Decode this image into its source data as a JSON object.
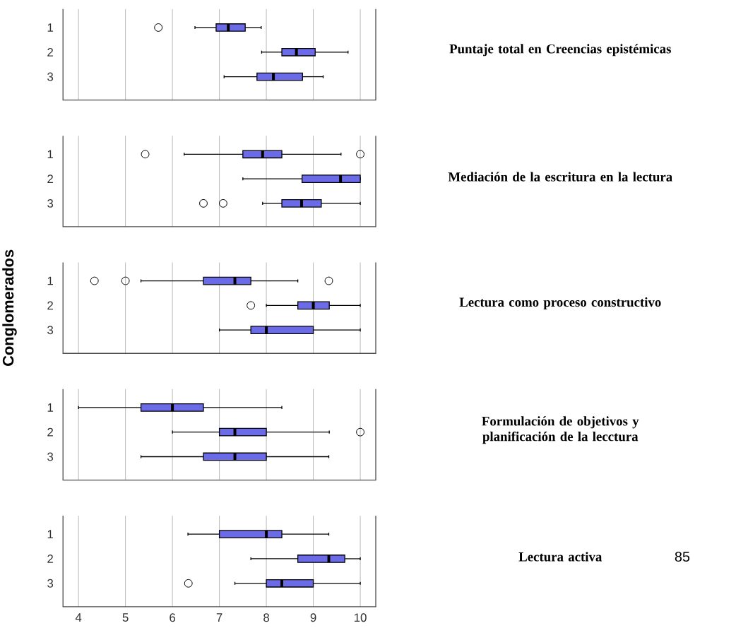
{
  "chart_data": [
    {
      "type": "box",
      "orientation": "horizontal",
      "annotations": [
        "Puntaje total en Creencias epistémicas"
      ],
      "categories": [
        "1",
        "2",
        "3"
      ],
      "color": "#6b6be8",
      "grid": "x",
      "tick_labels": "y",
      "xlim": [
        3.67,
        10.33
      ],
      "xticks": [
        4,
        5,
        6,
        7,
        8,
        9,
        10
      ],
      "boxes": [
        {
          "low": 6.48,
          "q1": 6.93,
          "median": 7.19,
          "q3": 7.55,
          "high": 7.89,
          "outliers": [
            5.7
          ]
        },
        {
          "low": 7.9,
          "q1": 8.33,
          "median": 8.64,
          "q3": 9.04,
          "high": 9.74
        },
        {
          "low": 7.1,
          "q1": 7.8,
          "median": 8.15,
          "q3": 8.77,
          "high": 9.21
        }
      ]
    },
    {
      "type": "box",
      "orientation": "horizontal",
      "annotations": [
        "Mediación de la escritura en la lectura"
      ],
      "categories": [
        "1",
        "2",
        "3"
      ],
      "color": "#6b6be8",
      "grid": "x",
      "tick_labels": "y",
      "xlim": [
        3.67,
        10.33
      ],
      "xticks": [
        4,
        5,
        6,
        7,
        8,
        9,
        10
      ],
      "boxes": [
        {
          "low": 6.25,
          "q1": 7.5,
          "median": 7.92,
          "q3": 8.33,
          "high": 9.59,
          "outliers": [
            5.42,
            10
          ]
        },
        {
          "low": 7.5,
          "q1": 8.76,
          "median": 9.58,
          "q3": 10,
          "high": 10
        },
        {
          "low": 7.92,
          "q1": 8.33,
          "median": 8.75,
          "q3": 9.17,
          "high": 10,
          "outliers": [
            6.66,
            7.08
          ]
        }
      ]
    },
    {
      "type": "box",
      "orientation": "horizontal",
      "annotations": [
        "Lectura como proceso constructivo"
      ],
      "ylabel": "Conglomerados",
      "categories": [
        "1",
        "2",
        "3"
      ],
      "color": "#6b6be8",
      "grid": "x",
      "tick_labels": "y",
      "xlim": [
        3.67,
        10.33
      ],
      "xticks": [
        4,
        5,
        6,
        7,
        8,
        9,
        10
      ],
      "boxes": [
        {
          "low": 5.33,
          "q1": 6.66,
          "median": 7.33,
          "q3": 7.67,
          "high": 8.67,
          "outliers": [
            4.34,
            5.0,
            9.33
          ]
        },
        {
          "low": 8.0,
          "q1": 8.67,
          "median": 9.0,
          "q3": 9.34,
          "high": 10,
          "outliers": [
            7.67
          ]
        },
        {
          "low": 7.0,
          "q1": 7.67,
          "median": 8.0,
          "q3": 9.0,
          "high": 10
        }
      ]
    },
    {
      "type": "box",
      "orientation": "horizontal",
      "annotations": [
        "Formulación de objetivos y planificación de la lecctura"
      ],
      "categories": [
        "1",
        "2",
        "3"
      ],
      "color": "#6b6be8",
      "grid": "x",
      "tick_labels": "y",
      "xlim": [
        3.67,
        10.33
      ],
      "xticks": [
        4,
        5,
        6,
        7,
        8,
        9,
        10
      ],
      "boxes": [
        {
          "low": 4.0,
          "q1": 5.33,
          "median": 6.0,
          "q3": 6.66,
          "high": 8.33
        },
        {
          "low": 6.0,
          "q1": 7.0,
          "median": 7.33,
          "q3": 8.0,
          "high": 9.34,
          "outliers": [
            10
          ]
        },
        {
          "low": 5.33,
          "q1": 6.66,
          "median": 7.33,
          "q3": 8.0,
          "high": 9.33
        }
      ]
    },
    {
      "type": "box",
      "orientation": "horizontal",
      "annotations": [
        "Lectura activa",
        "85"
      ],
      "categories": [
        "1",
        "2",
        "3"
      ],
      "color": "#6b6be8",
      "grid": "x",
      "xlim": [
        3.67,
        10.33
      ],
      "xticks": [
        4,
        5,
        6,
        7,
        8,
        9,
        10
      ],
      "boxes": [
        {
          "low": 6.33,
          "q1": 7.0,
          "median": 8.0,
          "q3": 8.33,
          "high": 9.33
        },
        {
          "low": 7.67,
          "q1": 8.67,
          "median": 9.33,
          "q3": 9.67,
          "high": 10
        },
        {
          "low": 7.33,
          "q1": 8.0,
          "median": 8.33,
          "q3": 9.0,
          "high": 10,
          "outliers": [
            6.34
          ]
        }
      ]
    }
  ]
}
